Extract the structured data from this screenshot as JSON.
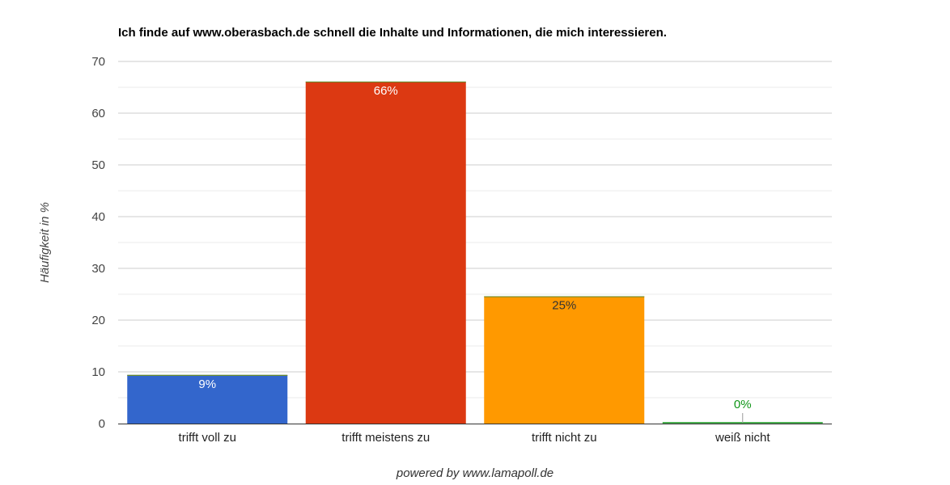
{
  "chart_data": {
    "type": "bar",
    "title": "Ich finde auf www.oberasbach.de schnell die Inhalte und Informationen, die mich interessieren.",
    "ylabel": "Häufigkeit in %",
    "xlabel": "",
    "categories": [
      "trifft voll zu",
      "trifft meistens zu",
      "trifft nicht zu",
      "weiß nicht"
    ],
    "values": [
      9.4,
      66.1,
      24.6,
      0
    ],
    "data_labels": [
      "9%",
      "66%",
      "25%",
      "0%"
    ],
    "colors": [
      "#3366cc",
      "#dc3912",
      "#ff9900",
      "#109618"
    ],
    "label_colors": [
      "#ffffff",
      "#ffffff",
      "#333333",
      "#109618"
    ],
    "ylim": [
      0,
      70
    ],
    "yticks": [
      0,
      10,
      20,
      30,
      40,
      50,
      60,
      70
    ],
    "grid": true,
    "legend": "none"
  },
  "footer": "powered by www.lamapoll.de"
}
